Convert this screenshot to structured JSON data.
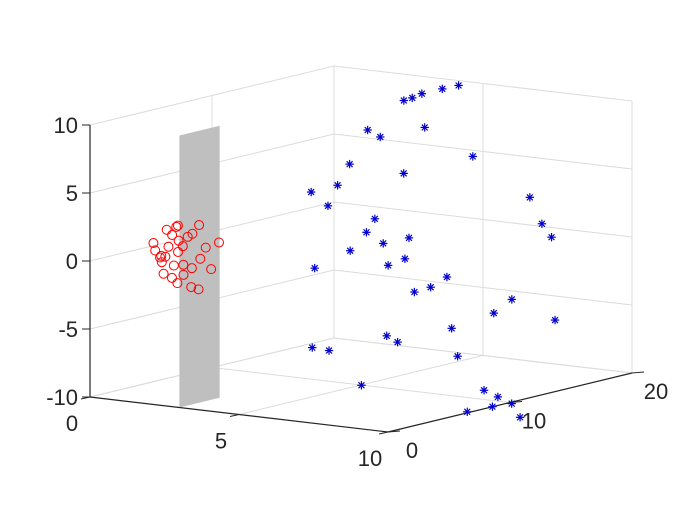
{
  "chart_data": {
    "type": "scatter",
    "title": "",
    "xlabel": "",
    "ylabel": "",
    "zlabel": "",
    "xlim": [
      0,
      10
    ],
    "ylim": [
      0,
      20
    ],
    "zlim": [
      -10,
      10
    ],
    "grid": true,
    "view": "3d",
    "x_ticks": [
      "0",
      "5",
      "10"
    ],
    "y_ticks": [
      "0",
      "10",
      "20"
    ],
    "z_ticks": [
      "-10",
      "-5",
      "0",
      "5",
      "10"
    ],
    "colors": {
      "class_a": "#ff0000",
      "class_b": "#0000cc",
      "plane": "#bfbfbf",
      "axis": "#262626",
      "grid": "#dcdcdc"
    },
    "series": [
      {
        "marker": "circle",
        "points": [
          [
            1.2,
            3.5,
            0.6
          ],
          [
            1.5,
            3.6,
            1.1
          ],
          [
            1.0,
            3.4,
            -0.1
          ],
          [
            1.8,
            4.0,
            1.6
          ],
          [
            1.3,
            3.9,
            2.0
          ],
          [
            1.6,
            3.3,
            2.3
          ],
          [
            0.9,
            3.0,
            0.9
          ],
          [
            1.4,
            3.8,
            0.2
          ],
          [
            1.1,
            3.2,
            -0.5
          ],
          [
            1.7,
            4.2,
            -1.0
          ],
          [
            1.9,
            4.4,
            -0.3
          ],
          [
            1.2,
            3.1,
            -1.3
          ],
          [
            1.5,
            3.5,
            -2.0
          ],
          [
            1.8,
            3.9,
            -2.3
          ],
          [
            2.0,
            4.6,
            0.5
          ],
          [
            1.3,
            3.7,
            -0.8
          ],
          [
            1.0,
            2.9,
            0.4
          ],
          [
            1.6,
            4.1,
            1.3
          ],
          [
            1.4,
            3.3,
            -1.6
          ],
          [
            2.1,
            4.8,
            -1.1
          ],
          [
            1.1,
            3.6,
            1.8
          ],
          [
            1.7,
            3.5,
            -0.6
          ],
          [
            1.9,
            4.3,
            2.2
          ],
          [
            1.3,
            3.0,
            0.0
          ],
          [
            1.5,
            4.0,
            -1.5
          ],
          [
            1.2,
            3.8,
            1.4
          ],
          [
            1.8,
            4.5,
            -2.6
          ],
          [
            1.0,
            3.3,
            -0.2
          ],
          [
            1.6,
            3.7,
            0.7
          ],
          [
            2.2,
            5.2,
            0.8
          ]
        ]
      },
      {
        "marker": "asterisk",
        "points": [
          [
            5.2,
            14.5,
            10.5
          ],
          [
            5.6,
            15.2,
            10.8
          ],
          [
            5.9,
            15.8,
            11.0
          ],
          [
            5.0,
            14.2,
            10.2
          ],
          [
            4.8,
            14.0,
            10.0
          ],
          [
            4.2,
            12.5,
            8.0
          ],
          [
            4.5,
            12.8,
            7.5
          ],
          [
            5.5,
            14.0,
            8.2
          ],
          [
            6.5,
            15.5,
            6.0
          ],
          [
            3.8,
            12.0,
            5.5
          ],
          [
            3.6,
            11.5,
            4.0
          ],
          [
            5.0,
            13.5,
            4.8
          ],
          [
            7.8,
            17.0,
            3.0
          ],
          [
            3.0,
            10.8,
            3.5
          ],
          [
            3.4,
            11.2,
            2.5
          ],
          [
            4.4,
            12.6,
            1.5
          ],
          [
            8.0,
            17.5,
            1.0
          ],
          [
            4.2,
            12.4,
            0.5
          ],
          [
            8.2,
            17.8,
            0.0
          ],
          [
            4.6,
            12.8,
            -0.3
          ],
          [
            5.3,
            13.2,
            0.2
          ],
          [
            3.9,
            11.8,
            -0.8
          ],
          [
            5.0,
            13.6,
            -1.5
          ],
          [
            4.6,
            13.2,
            -2.0
          ],
          [
            6.0,
            14.6,
            -2.8
          ],
          [
            5.7,
            14.0,
            -3.5
          ],
          [
            5.4,
            13.4,
            -3.8
          ],
          [
            3.2,
            10.6,
            -2.0
          ],
          [
            7.4,
            16.5,
            -4.5
          ],
          [
            7.0,
            16.0,
            -5.5
          ],
          [
            4.8,
            12.6,
            -7.0
          ],
          [
            5.0,
            13.0,
            -7.5
          ],
          [
            6.2,
            14.5,
            -6.5
          ],
          [
            8.4,
            17.6,
            -6.0
          ],
          [
            3.2,
            10.4,
            -7.8
          ],
          [
            3.6,
            10.8,
            -8.0
          ],
          [
            6.4,
            14.5,
            -8.5
          ],
          [
            7.0,
            15.2,
            -11.0
          ],
          [
            7.3,
            15.6,
            -11.5
          ],
          [
            4.4,
            11.5,
            -10.5
          ],
          [
            7.6,
            16.0,
            -12.0
          ],
          [
            7.2,
            15.4,
            -12.2
          ],
          [
            6.6,
            14.8,
            -12.6
          ],
          [
            7.8,
            16.2,
            -13.0
          ]
        ]
      }
    ],
    "surface": {
      "type": "plane",
      "corners": [
        [
          3.0,
          0,
          10
        ],
        [
          3.0,
          0,
          -10
        ],
        [
          3.0,
          3.3,
          -10
        ],
        [
          3.0,
          3.3,
          10
        ]
      ]
    }
  }
}
